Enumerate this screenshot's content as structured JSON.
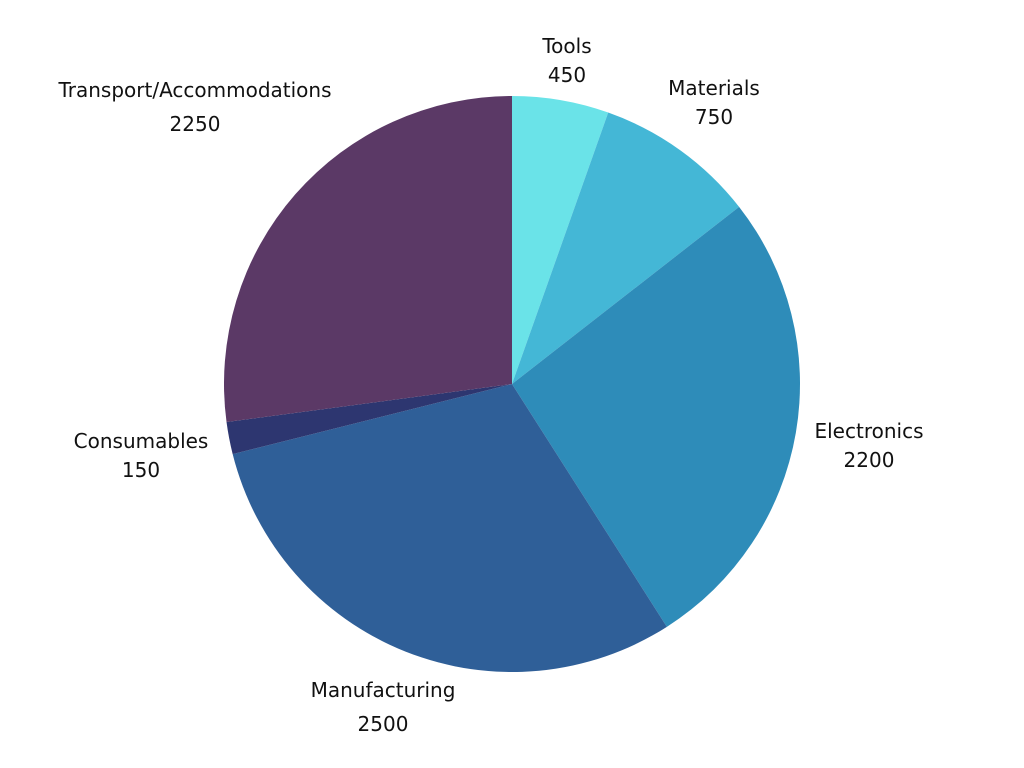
{
  "chart_data": {
    "type": "pie",
    "title": "",
    "start_angle_deg": 0,
    "direction": "clockwise",
    "slices": [
      {
        "label": "Tools",
        "value": 450,
        "color": "#6ae3e8"
      },
      {
        "label": "Materials",
        "value": 750,
        "color": "#44b7d6"
      },
      {
        "label": "Electronics",
        "value": 2200,
        "color": "#2e8cb9"
      },
      {
        "label": "Manufacturing",
        "value": 2500,
        "color": "#2f5f98"
      },
      {
        "label": "Consumables",
        "value": 150,
        "color": "#2d3670"
      },
      {
        "label": "Transport/Accommodations",
        "value": 2250,
        "color": "#5b3966"
      }
    ],
    "value_labels": [
      "450",
      "750",
      "2200",
      "2500",
      "150",
      "2250"
    ]
  }
}
